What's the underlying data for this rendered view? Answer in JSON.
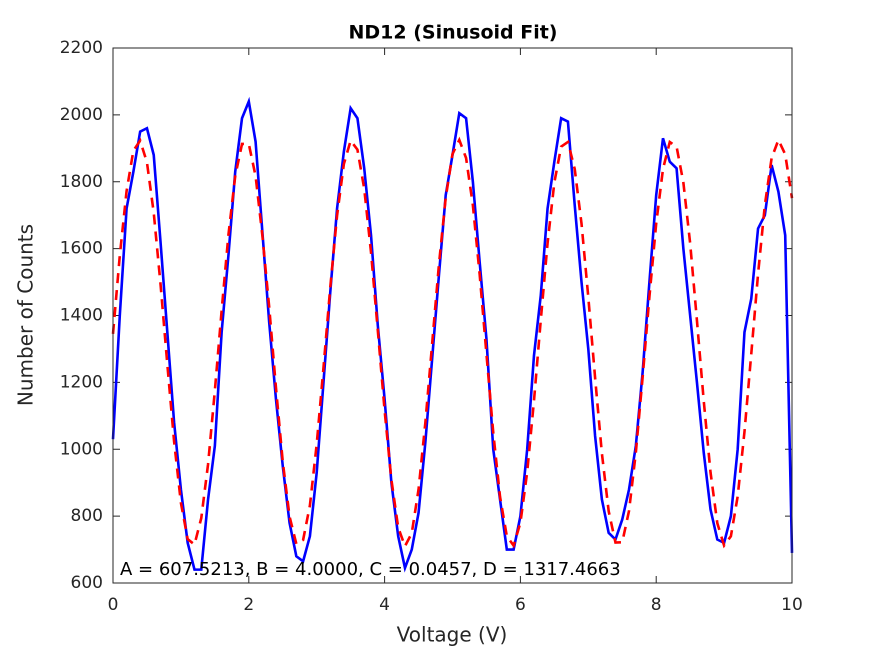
{
  "chart_data": {
    "type": "line",
    "title": "ND12 (Sinusoid Fit)",
    "x_label": "Voltage (V)",
    "y_label": "Number of Counts",
    "annotation": "A = 607.5213, B = 4.0000, C = 0.0457, D = 1317.4663",
    "x": [
      0,
      0.1,
      0.2,
      0.3,
      0.4,
      0.5,
      0.6,
      0.7,
      0.8,
      0.9,
      1,
      1.1,
      1.2,
      1.3,
      1.4,
      1.5,
      1.6,
      1.7,
      1.8,
      1.9,
      2,
      2.1,
      2.2,
      2.3,
      2.4,
      2.5,
      2.6,
      2.7,
      2.8,
      2.9,
      3,
      3.1,
      3.2,
      3.3,
      3.4,
      3.5,
      3.6,
      3.7,
      3.8,
      3.9,
      4,
      4.1,
      4.2,
      4.3,
      4.4,
      4.5,
      4.6,
      4.7,
      4.8,
      4.9,
      5,
      5.1,
      5.2,
      5.3,
      5.4,
      5.5,
      5.6,
      5.7,
      5.8,
      5.9,
      6,
      6.1,
      6.2,
      6.3,
      6.4,
      6.5,
      6.6,
      6.7,
      6.8,
      6.9,
      7,
      7.1,
      7.2,
      7.3,
      7.4,
      7.5,
      7.6,
      7.7,
      7.8,
      7.9,
      8,
      8.1,
      8.2,
      8.3,
      8.4,
      8.5,
      8.6,
      8.7,
      8.8,
      8.9,
      9,
      9.1,
      9.2,
      9.3,
      9.4,
      9.5,
      9.6,
      9.7,
      9.8,
      9.9,
      10
    ],
    "series": [
      {
        "color": "#0000ff",
        "line_style": "solid",
        "values": [
          1030,
          1400,
          1720,
          1830,
          1950,
          1960,
          1880,
          1620,
          1350,
          1080,
          880,
          720,
          640,
          640,
          850,
          1010,
          1350,
          1580,
          1830,
          1990,
          2040,
          1920,
          1650,
          1380,
          1150,
          950,
          780,
          680,
          665,
          740,
          930,
          1200,
          1470,
          1720,
          1890,
          2020,
          1990,
          1840,
          1640,
          1370,
          1150,
          900,
          740,
          645,
          700,
          810,
          1020,
          1270,
          1520,
          1760,
          1880,
          2005,
          1990,
          1800,
          1560,
          1330,
          1000,
          850,
          700,
          700,
          800,
          1000,
          1280,
          1460,
          1720,
          1860,
          1990,
          1980,
          1730,
          1500,
          1300,
          1040,
          850,
          750,
          730,
          790,
          880,
          1010,
          1230,
          1500,
          1760,
          1930,
          1860,
          1840,
          1600,
          1400,
          1200,
          990,
          820,
          730,
          720,
          800,
          1000,
          1350,
          1450,
          1660,
          1700,
          1850,
          1770,
          1640,
          690
        ]
      },
      {
        "color": "#ff0000",
        "line_style": "dashed",
        "values": [
          1345,
          1579,
          1772,
          1893,
          1923,
          1858,
          1707,
          1494,
          1254,
          1023,
          840,
          731,
          715,
          794,
          955,
          1175,
          1415,
          1641,
          1817,
          1913,
          1913,
          1817,
          1639,
          1426,
          1184,
          963,
          799,
          717,
          729,
          832,
          1015,
          1244,
          1485,
          1699,
          1853,
          1923,
          1896,
          1779,
          1589,
          1355,
          1116,
          909,
          766,
          710,
          749,
          880,
          1079,
          1315,
          1552,
          1752,
          1883,
          1925,
          1871,
          1730,
          1523,
          1285,
          1050,
          858,
          740,
          712,
          780,
          932,
          1145,
          1386,
          1616,
          1798,
          1905,
          1919,
          1838,
          1675,
          1455,
          1214,
          988,
          815,
          721,
          722,
          816,
          990,
          1215,
          1456,
          1675,
          1838,
          1919,
          1905,
          1798,
          1616,
          1385,
          1145,
          931,
          779,
          712,
          740,
          859,
          1052,
          1285,
          1524,
          1730,
          1871,
          1925,
          1882,
          1751
        ]
      }
    ],
    "xlim": [
      0,
      10
    ],
    "xticks": [
      0,
      2,
      4,
      6,
      8,
      10
    ],
    "ylim": [
      600,
      2200
    ],
    "yticks": [
      600,
      800,
      1000,
      1200,
      1400,
      1600,
      1800,
      2000,
      2200
    ],
    "grid": false
  }
}
